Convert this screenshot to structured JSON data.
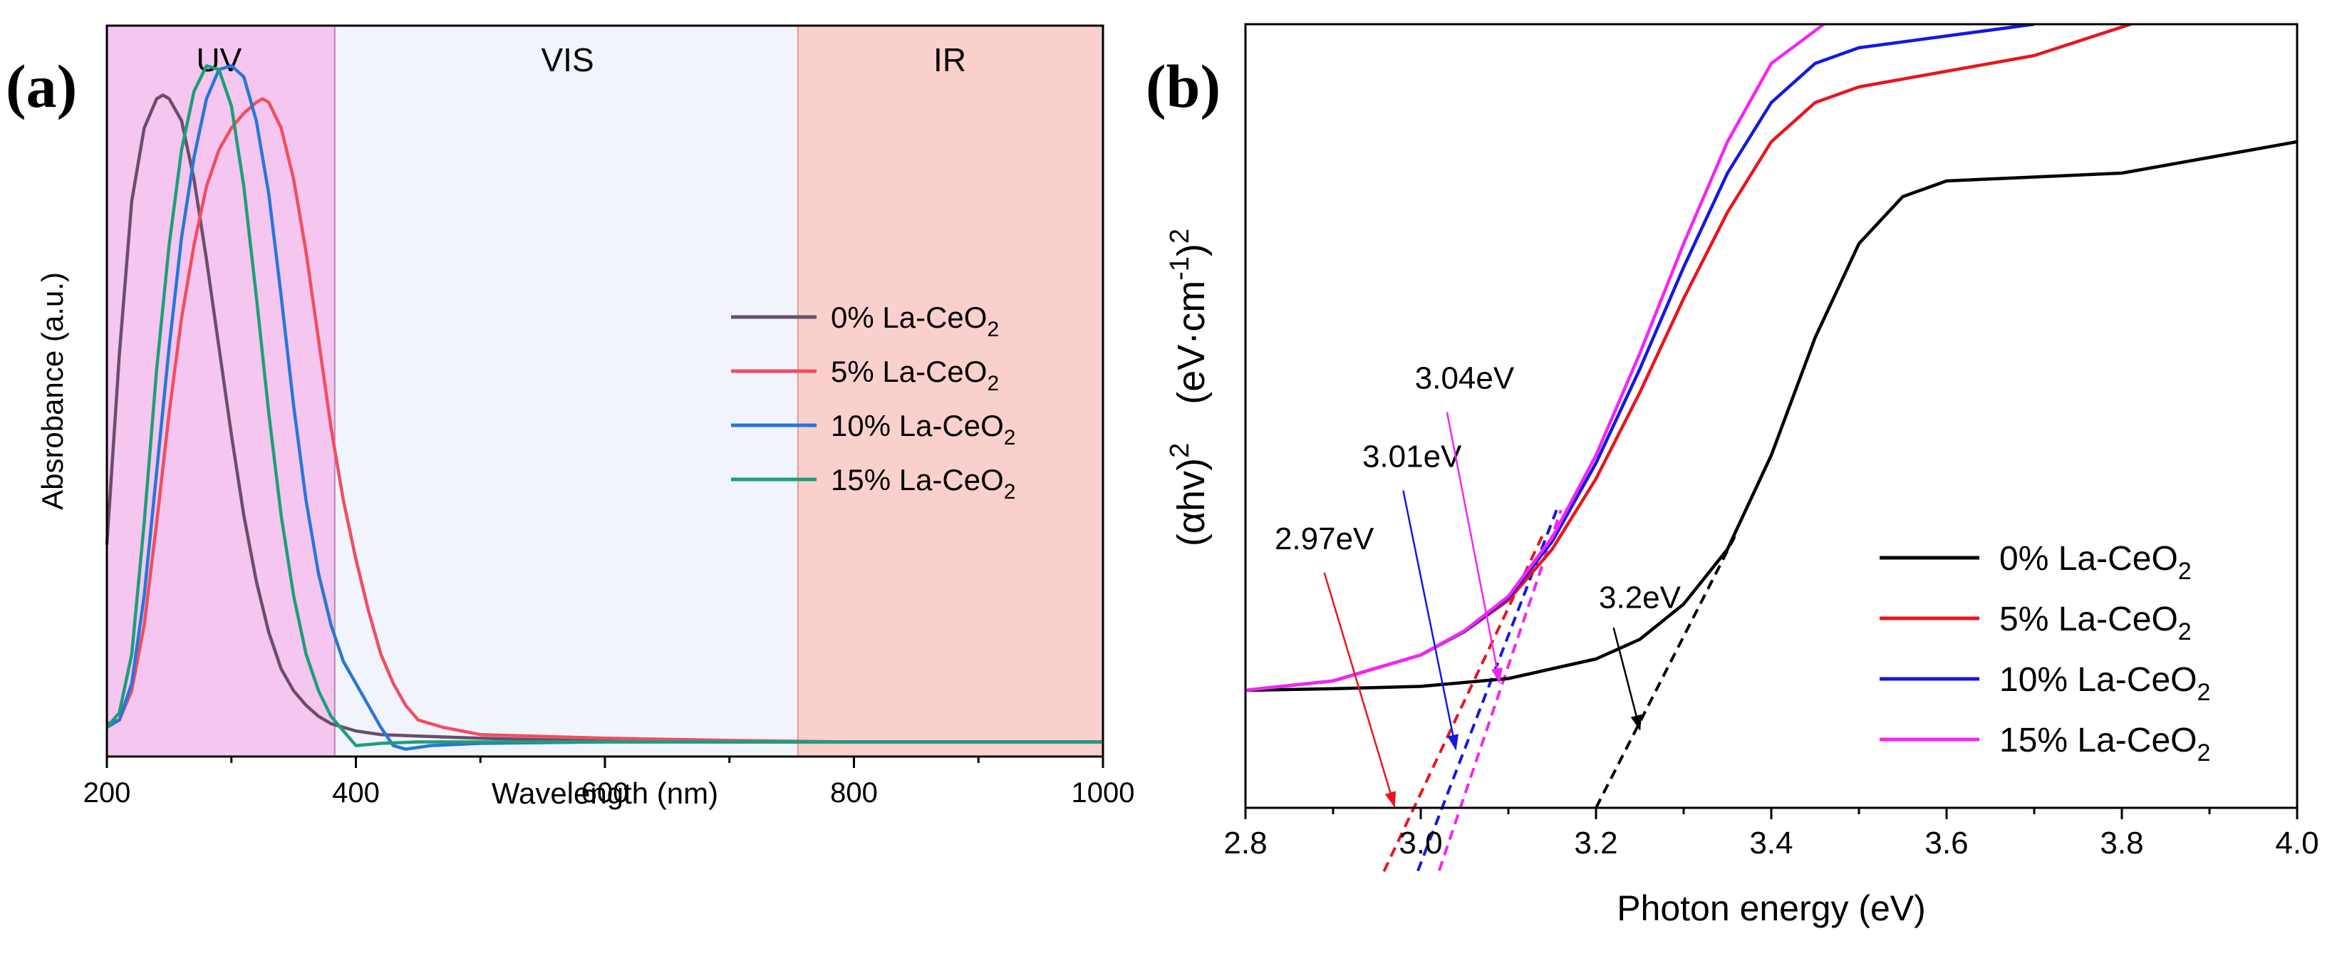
{
  "chart_data": [
    {
      "panel": "(a)",
      "type": "line",
      "xlabel": "Wavelength (nm)",
      "ylabel": "Absrobance (a.u.)",
      "xlim": [
        200,
        1000
      ],
      "ylim": [
        0,
        1.0
      ],
      "xticks": [
        200,
        400,
        600,
        800,
        1000
      ],
      "regions": [
        {
          "label": "UV",
          "from": 200,
          "to": 383,
          "color": "#f5c6f0"
        },
        {
          "label": "VIS",
          "from": 383,
          "to": 755,
          "color": "#f1f4fb"
        },
        {
          "label": "IR",
          "from": 755,
          "to": 1000,
          "color": "#fad0cd"
        }
      ],
      "legend_position": "center-right",
      "series": [
        {
          "name": "0% La-CeO2",
          "legend": {
            "pre": "0% La-CeO",
            "sub": "2"
          },
          "color": "#6a4e6b",
          "x": [
            200,
            210,
            220,
            230,
            240,
            245,
            250,
            260,
            270,
            280,
            290,
            300,
            310,
            320,
            330,
            340,
            350,
            360,
            370,
            380,
            390,
            400,
            420,
            450,
            500,
            600,
            700,
            800,
            900,
            1000
          ],
          "y": [
            0.29,
            0.55,
            0.76,
            0.86,
            0.9,
            0.905,
            0.9,
            0.87,
            0.79,
            0.68,
            0.56,
            0.44,
            0.33,
            0.24,
            0.17,
            0.12,
            0.09,
            0.07,
            0.055,
            0.045,
            0.04,
            0.035,
            0.03,
            0.028,
            0.025,
            0.021,
            0.02,
            0.02,
            0.02,
            0.02
          ]
        },
        {
          "name": "5% La-CeO2",
          "legend": {
            "pre": "5% La-CeO",
            "sub": "2"
          },
          "color": "#f04e5f",
          "x": [
            200,
            210,
            220,
            230,
            240,
            250,
            260,
            270,
            280,
            290,
            300,
            310,
            320,
            325,
            330,
            340,
            350,
            360,
            370,
            380,
            390,
            400,
            410,
            420,
            430,
            440,
            450,
            470,
            500,
            600,
            700,
            800,
            900,
            1000
          ],
          "y": [
            0.045,
            0.05,
            0.09,
            0.18,
            0.32,
            0.47,
            0.6,
            0.7,
            0.78,
            0.83,
            0.86,
            0.88,
            0.895,
            0.9,
            0.895,
            0.86,
            0.79,
            0.69,
            0.57,
            0.45,
            0.35,
            0.27,
            0.2,
            0.14,
            0.1,
            0.07,
            0.05,
            0.04,
            0.03,
            0.025,
            0.022,
            0.02,
            0.02,
            0.02
          ]
        },
        {
          "name": "10% La-CeO2",
          "legend": {
            "pre": "10% La-CeO",
            "sub": "2"
          },
          "color": "#2677d8",
          "x": [
            200,
            210,
            220,
            230,
            240,
            250,
            260,
            270,
            280,
            290,
            300,
            310,
            320,
            330,
            340,
            350,
            360,
            370,
            380,
            390,
            400,
            410,
            420,
            430,
            440,
            460,
            500,
            600,
            700,
            800,
            900,
            1000
          ],
          "y": [
            0.04,
            0.05,
            0.1,
            0.22,
            0.39,
            0.56,
            0.71,
            0.82,
            0.9,
            0.94,
            0.945,
            0.93,
            0.87,
            0.77,
            0.63,
            0.48,
            0.35,
            0.25,
            0.18,
            0.13,
            0.1,
            0.07,
            0.04,
            0.015,
            0.01,
            0.015,
            0.018,
            0.02,
            0.02,
            0.02,
            0.02,
            0.02
          ]
        },
        {
          "name": "15% La-CeO2",
          "legend": {
            "pre": "15% La-CeO",
            "sub": "2"
          },
          "color": "#1e9e7a",
          "x": [
            200,
            210,
            220,
            230,
            240,
            250,
            260,
            270,
            280,
            290,
            300,
            310,
            320,
            330,
            340,
            350,
            360,
            370,
            380,
            390,
            400,
            420,
            450,
            500,
            600,
            700,
            800,
            900,
            1000
          ],
          "y": [
            0.04,
            0.06,
            0.14,
            0.32,
            0.53,
            0.7,
            0.83,
            0.91,
            0.945,
            0.94,
            0.89,
            0.78,
            0.63,
            0.47,
            0.33,
            0.22,
            0.14,
            0.09,
            0.055,
            0.035,
            0.015,
            0.018,
            0.02,
            0.02,
            0.02,
            0.02,
            0.02,
            0.02,
            0.02
          ]
        }
      ]
    },
    {
      "panel": "(b)",
      "type": "line",
      "xlabel": "Photon energy (eV)",
      "ylabel": {
        "pre": "(αhv)",
        "sup1": "2",
        "mid": "(eV·cm",
        "sup2": "-1",
        "post": ")",
        "sup3": "2"
      },
      "xlim": [
        2.8,
        4.0
      ],
      "ylim": [
        0,
        1.0
      ],
      "xticks": [
        "2.8",
        "3.0",
        "3.2",
        "3.4",
        "3.6",
        "3.8",
        "4.0"
      ],
      "legend_position": "lower-right",
      "series": [
        {
          "name": "0% La-CeO2",
          "legend": {
            "pre": "0% La-CeO",
            "sub": "2"
          },
          "color": "#000000",
          "x": [
            2.8,
            2.9,
            3.0,
            3.1,
            3.2,
            3.25,
            3.3,
            3.35,
            3.4,
            3.45,
            3.5,
            3.55,
            3.6,
            3.7,
            3.8,
            3.9,
            4.0
          ],
          "y": [
            0.15,
            0.152,
            0.155,
            0.165,
            0.19,
            0.215,
            0.26,
            0.33,
            0.45,
            0.6,
            0.72,
            0.78,
            0.8,
            0.805,
            0.81,
            0.83,
            0.85
          ]
        },
        {
          "name": "5% La-CeO2",
          "legend": {
            "pre": "5% La-CeO",
            "sub": "2"
          },
          "color": "#e8151d",
          "x": [
            2.8,
            2.9,
            3.0,
            3.05,
            3.1,
            3.15,
            3.2,
            3.25,
            3.3,
            3.35,
            3.4,
            3.45,
            3.5,
            3.6,
            3.7,
            3.81
          ],
          "y": [
            0.15,
            0.162,
            0.195,
            0.225,
            0.265,
            0.33,
            0.42,
            0.53,
            0.65,
            0.76,
            0.85,
            0.9,
            0.92,
            0.94,
            0.96,
            1.0
          ]
        },
        {
          "name": "10% La-CeO2",
          "legend": {
            "pre": "10% La-CeO",
            "sub": "2"
          },
          "color": "#1418e0",
          "x": [
            2.8,
            2.9,
            3.0,
            3.05,
            3.1,
            3.15,
            3.2,
            3.25,
            3.3,
            3.35,
            3.4,
            3.45,
            3.5,
            3.6,
            3.7
          ],
          "y": [
            0.15,
            0.162,
            0.195,
            0.225,
            0.268,
            0.34,
            0.44,
            0.56,
            0.69,
            0.81,
            0.9,
            0.95,
            0.97,
            0.985,
            1.0
          ]
        },
        {
          "name": "15% La-CeO2",
          "legend": {
            "pre": "15% La-CeO",
            "sub": "2"
          },
          "color": "#f425f4",
          "x": [
            2.8,
            2.9,
            3.0,
            3.05,
            3.1,
            3.15,
            3.2,
            3.25,
            3.3,
            3.35,
            3.4,
            3.46
          ],
          "y": [
            0.15,
            0.162,
            0.195,
            0.226,
            0.27,
            0.345,
            0.45,
            0.58,
            0.72,
            0.85,
            0.95,
            1.0
          ]
        }
      ],
      "tangent_lines": [
        {
          "color": "#000000",
          "x": [
            3.2,
            3.36
          ],
          "y": [
            0.0,
            0.35
          ]
        },
        {
          "color": "#e8151d",
          "x": [
            2.95,
            3.14
          ],
          "y": [
            -0.1,
            0.35
          ]
        },
        {
          "color": "#1418e0",
          "x": [
            2.99,
            3.155
          ],
          "y": [
            -0.1,
            0.38
          ]
        },
        {
          "color": "#f425f4",
          "x": [
            3.015,
            3.16
          ],
          "y": [
            -0.1,
            0.38
          ]
        }
      ],
      "annotations": [
        {
          "text": "3.2eV",
          "color": "#000000",
          "label_at": [
            3.25,
            0.255
          ],
          "arrow_from": [
            3.22,
            0.23
          ],
          "arrow_to": [
            3.25,
            0.1
          ]
        },
        {
          "text": "2.97eV",
          "color": "#e8151d",
          "label_at": [
            2.89,
            0.33
          ],
          "arrow_from": [
            2.89,
            0.3
          ],
          "arrow_to": [
            2.97,
            0.002
          ]
        },
        {
          "text": "3.01eV",
          "color": "#1418e0",
          "label_at": [
            2.99,
            0.435
          ],
          "arrow_from": [
            2.98,
            0.405
          ],
          "arrow_to": [
            3.04,
            0.075
          ]
        },
        {
          "text": "3.04eV",
          "color": "#f425f4",
          "label_at": [
            3.05,
            0.535
          ],
          "arrow_from": [
            3.03,
            0.505
          ],
          "arrow_to": [
            3.09,
            0.16
          ]
        }
      ]
    }
  ],
  "panels": {
    "a": {
      "label": "(a)"
    },
    "b": {
      "label": "(b)"
    }
  }
}
